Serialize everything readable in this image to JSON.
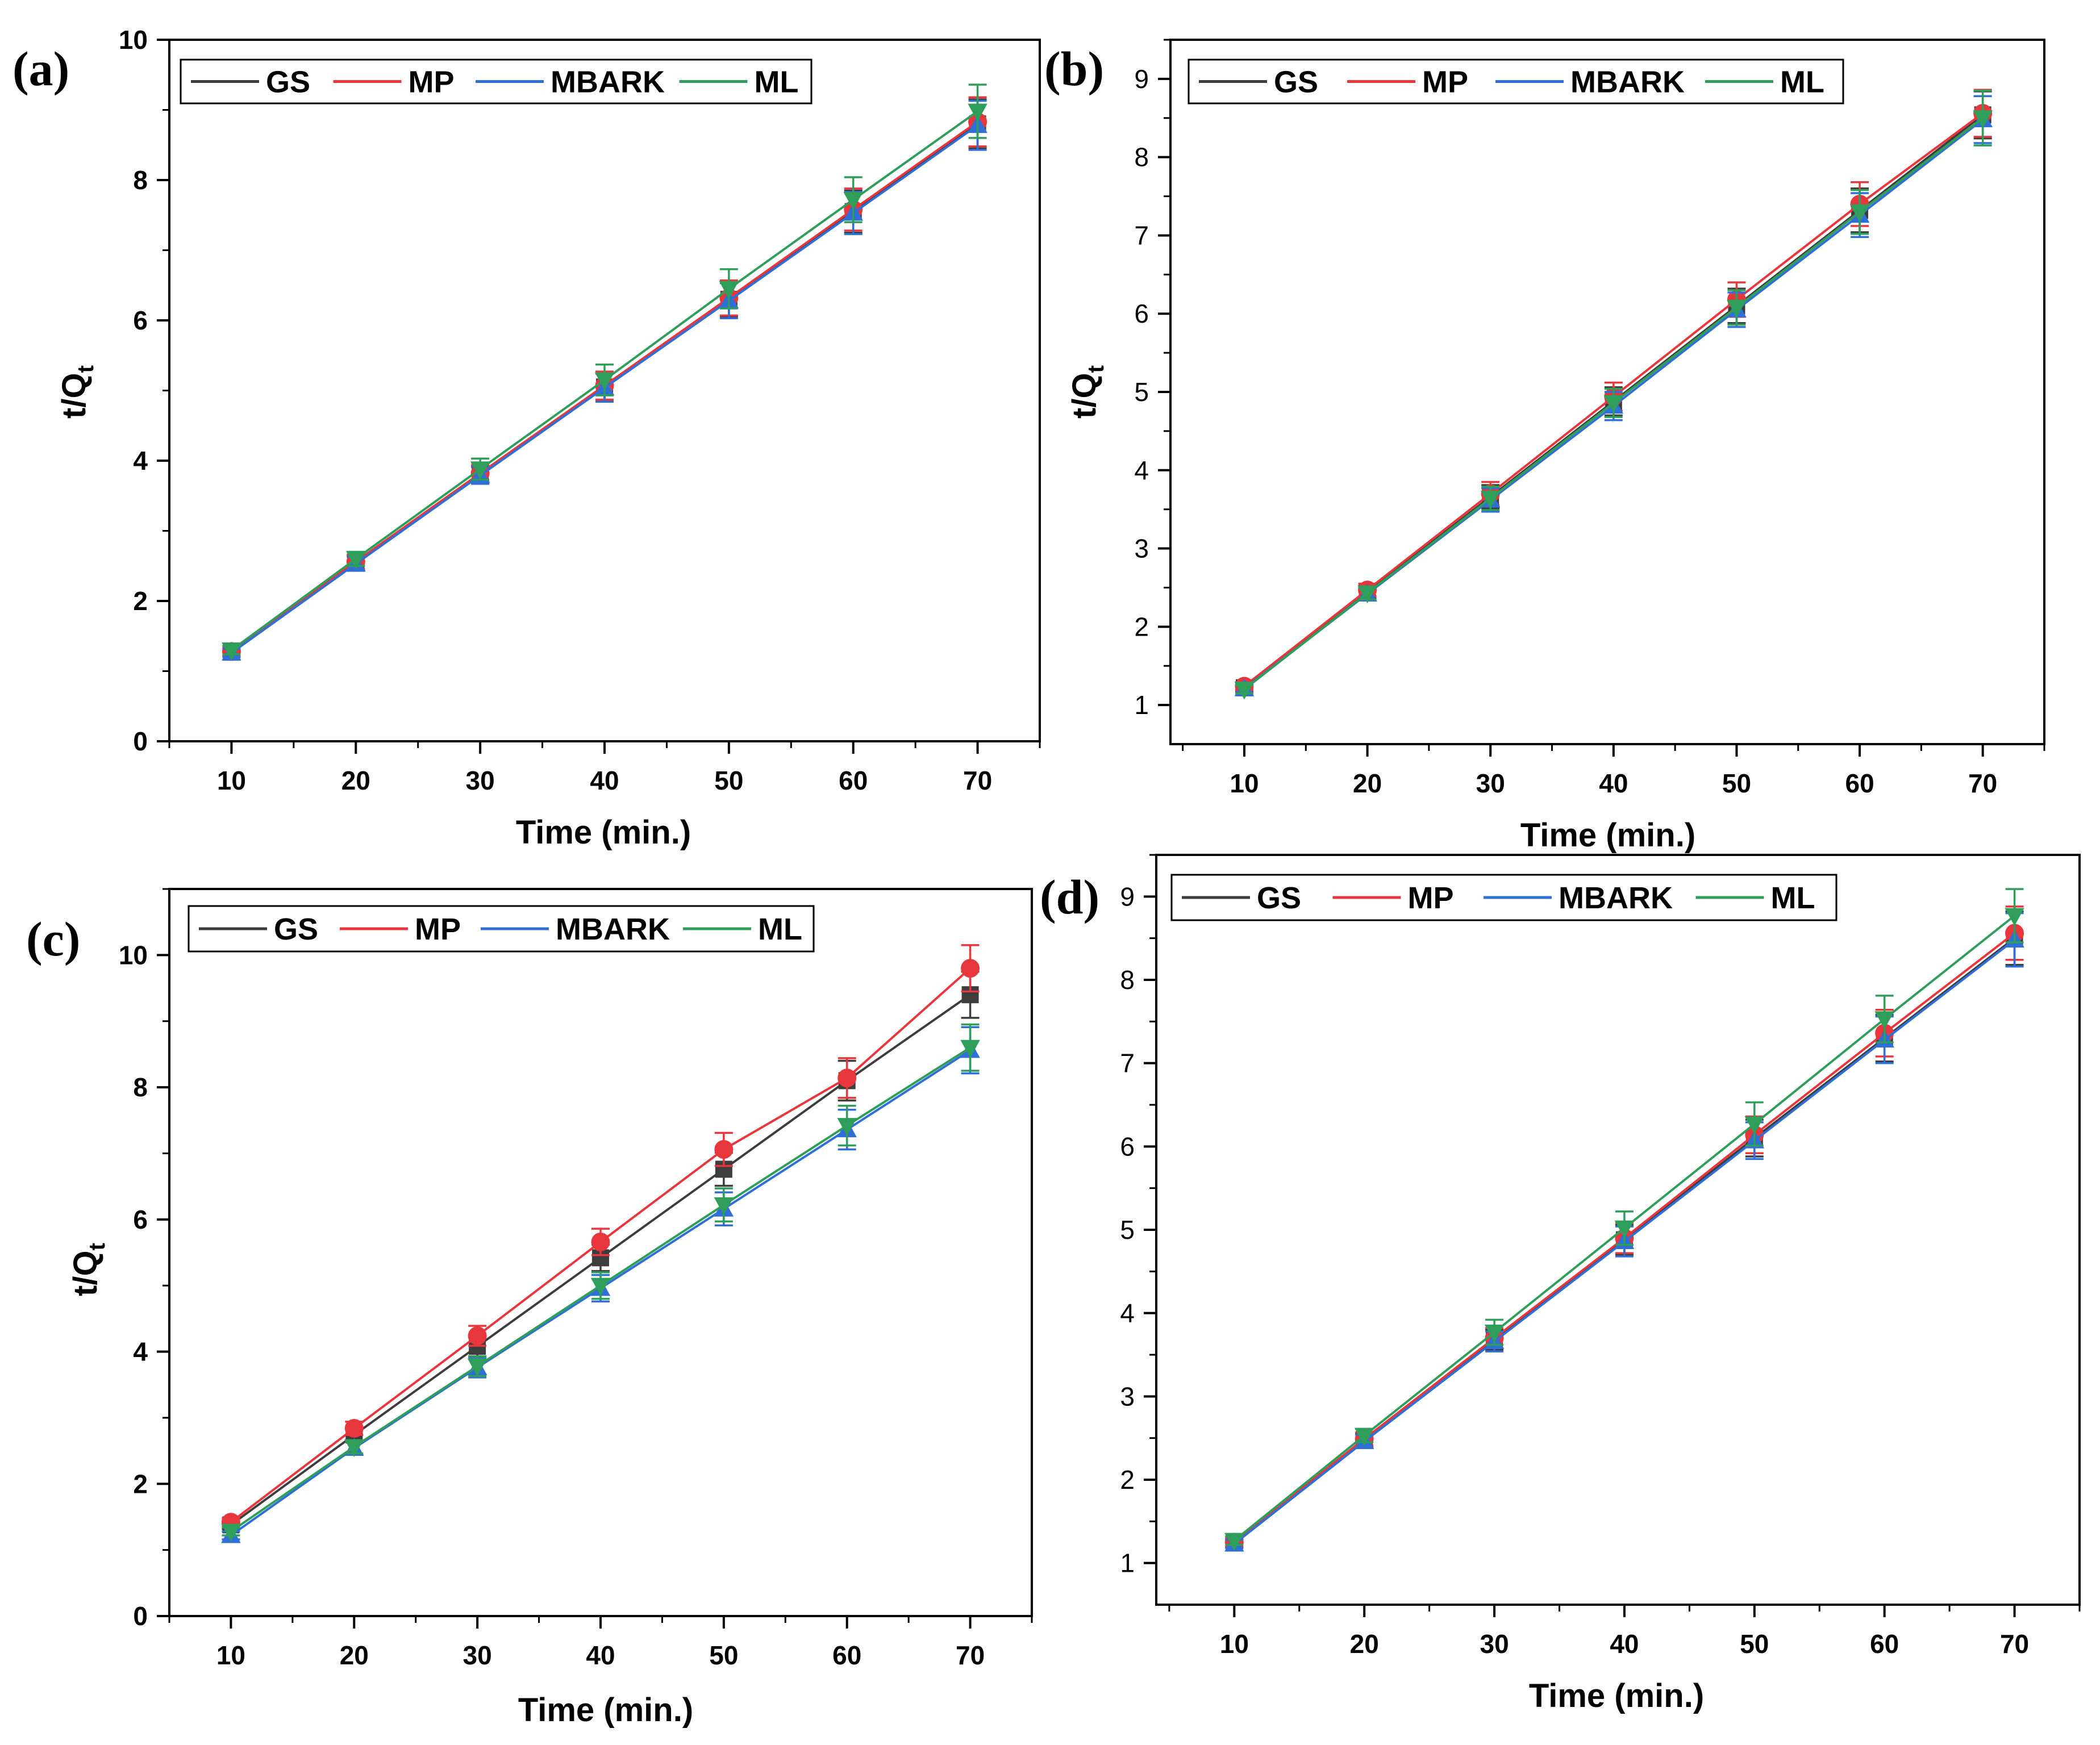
{
  "colors": {
    "GS": "#3d3d3d",
    "MP": "#e8373c",
    "MBARK": "#2f6fd6",
    "ML": "#2f9e5b",
    "axis": "#000000",
    "legend_border": "#000000"
  },
  "markers": {
    "GS": "square",
    "MP": "circle",
    "MBARK": "triangle-up",
    "ML": "triangle-down"
  },
  "chart_data": [
    {
      "panel": "(a)",
      "type": "line",
      "xlabel": "Time (min.)",
      "ylabel_main": "t/Q",
      "ylabel_sub": "t",
      "x": [
        10,
        20,
        30,
        40,
        50,
        60,
        70
      ],
      "xlim": [
        5,
        75
      ],
      "ylim": [
        0,
        10
      ],
      "xticks": [
        10,
        20,
        30,
        40,
        50,
        60,
        70
      ],
      "yticks": [
        0,
        2,
        4,
        6,
        8,
        10
      ],
      "legend": [
        "GS",
        "MP",
        "MBARK",
        "ML"
      ],
      "series": [
        {
          "name": "GS",
          "values": [
            1.27,
            2.55,
            3.8,
            5.05,
            6.3,
            7.55,
            8.8
          ],
          "err": [
            0.06,
            0.1,
            0.12,
            0.2,
            0.25,
            0.3,
            0.35
          ]
        },
        {
          "name": "MP",
          "values": [
            1.28,
            2.56,
            3.82,
            5.07,
            6.32,
            7.58,
            8.83
          ],
          "err": [
            0.06,
            0.1,
            0.12,
            0.2,
            0.25,
            0.3,
            0.35
          ]
        },
        {
          "name": "MBARK",
          "values": [
            1.26,
            2.53,
            3.79,
            5.04,
            6.28,
            7.53,
            8.78
          ],
          "err": [
            0.06,
            0.1,
            0.12,
            0.2,
            0.25,
            0.3,
            0.35
          ]
        },
        {
          "name": "ML",
          "values": [
            1.3,
            2.6,
            3.88,
            5.15,
            6.45,
            7.72,
            8.98
          ],
          "err": [
            0.06,
            0.1,
            0.15,
            0.22,
            0.28,
            0.32,
            0.38
          ]
        }
      ]
    },
    {
      "panel": "(b)",
      "type": "line",
      "xlabel": "Time (min.)",
      "ylabel_main": "t/Q",
      "ylabel_sub": "t",
      "x": [
        10,
        20,
        30,
        40,
        50,
        60,
        70
      ],
      "xlim": [
        4,
        75
      ],
      "ylim": [
        0.5,
        9.5
      ],
      "xticks": [
        10,
        20,
        30,
        40,
        50,
        60,
        70
      ],
      "yticks": [
        1,
        2,
        3,
        4,
        5,
        6,
        7,
        8,
        9
      ],
      "legend": [
        "GS",
        "MP",
        "MBARK",
        "ML"
      ],
      "series": [
        {
          "name": "GS",
          "values": [
            1.22,
            2.44,
            3.66,
            4.88,
            6.1,
            7.32,
            8.54
          ],
          "err": [
            0.05,
            0.08,
            0.15,
            0.18,
            0.22,
            0.28,
            0.3
          ]
        },
        {
          "name": "MP",
          "values": [
            1.24,
            2.47,
            3.7,
            4.94,
            6.18,
            7.4,
            8.56
          ],
          "err": [
            0.05,
            0.08,
            0.15,
            0.18,
            0.22,
            0.28,
            0.3
          ]
        },
        {
          "name": "MBARK",
          "values": [
            1.21,
            2.42,
            3.62,
            4.82,
            6.05,
            7.26,
            8.48
          ],
          "err": [
            0.05,
            0.08,
            0.15,
            0.18,
            0.22,
            0.28,
            0.3
          ]
        },
        {
          "name": "ML",
          "values": [
            1.2,
            2.43,
            3.64,
            4.86,
            6.08,
            7.3,
            8.5
          ],
          "err": [
            0.05,
            0.08,
            0.15,
            0.18,
            0.22,
            0.28,
            0.35
          ]
        }
      ]
    },
    {
      "panel": "(c)",
      "type": "line",
      "xlabel": "Time (min.)",
      "ylabel_main": "t/Q",
      "ylabel_sub": "t",
      "x": [
        10,
        20,
        30,
        40,
        50,
        60,
        70
      ],
      "xlim": [
        5,
        75
      ],
      "ylim": [
        0,
        11
      ],
      "xticks": [
        10,
        20,
        30,
        40,
        50,
        60,
        70
      ],
      "yticks": [
        0,
        2,
        4,
        6,
        8,
        10
      ],
      "legend": [
        "GS",
        "MP",
        "MBARK",
        "ML"
      ],
      "series": [
        {
          "name": "GS",
          "values": [
            1.38,
            2.74,
            4.08,
            5.42,
            6.76,
            8.1,
            9.4
          ],
          "err": [
            0.06,
            0.1,
            0.15,
            0.2,
            0.25,
            0.3,
            0.35
          ]
        },
        {
          "name": "MP",
          "values": [
            1.42,
            2.84,
            4.24,
            5.66,
            7.06,
            8.14,
            9.8
          ],
          "err": [
            0.06,
            0.1,
            0.15,
            0.2,
            0.25,
            0.3,
            0.35
          ]
        },
        {
          "name": "MBARK",
          "values": [
            1.22,
            2.54,
            3.76,
            4.96,
            6.16,
            7.36,
            8.56
          ],
          "err": [
            0.06,
            0.1,
            0.15,
            0.2,
            0.25,
            0.3,
            0.35
          ]
        },
        {
          "name": "ML",
          "values": [
            1.28,
            2.56,
            3.78,
            5.0,
            6.22,
            7.42,
            8.6
          ],
          "err": [
            0.06,
            0.1,
            0.15,
            0.2,
            0.25,
            0.3,
            0.35
          ]
        }
      ]
    },
    {
      "panel": "(d)",
      "type": "line",
      "xlabel": "Time (min.)",
      "ylabel_main": "",
      "ylabel_sub": "",
      "x": [
        10,
        20,
        30,
        40,
        50,
        60,
        70
      ],
      "xlim": [
        4,
        75
      ],
      "ylim": [
        0.5,
        9.5
      ],
      "xticks": [
        10,
        20,
        30,
        40,
        50,
        60,
        70
      ],
      "yticks": [
        1,
        2,
        3,
        4,
        5,
        6,
        7,
        8,
        9
      ],
      "legend": [
        "GS",
        "MP",
        "MBARK",
        "ML"
      ],
      "series": [
        {
          "name": "GS",
          "values": [
            1.24,
            2.47,
            3.68,
            4.88,
            6.1,
            7.3,
            8.5
          ],
          "err": [
            0.05,
            0.08,
            0.12,
            0.18,
            0.22,
            0.28,
            0.32
          ]
        },
        {
          "name": "MP",
          "values": [
            1.25,
            2.49,
            3.7,
            4.9,
            6.14,
            7.36,
            8.56
          ],
          "err": [
            0.05,
            0.08,
            0.12,
            0.18,
            0.22,
            0.28,
            0.32
          ]
        },
        {
          "name": "MBARK",
          "values": [
            1.23,
            2.46,
            3.66,
            4.86,
            6.07,
            7.28,
            8.48
          ],
          "err": [
            0.05,
            0.08,
            0.12,
            0.18,
            0.22,
            0.28,
            0.32
          ]
        },
        {
          "name": "ML",
          "values": [
            1.27,
            2.53,
            3.77,
            5.02,
            6.27,
            7.53,
            8.77
          ],
          "err": [
            0.05,
            0.08,
            0.15,
            0.2,
            0.26,
            0.28,
            0.32
          ]
        }
      ]
    }
  ]
}
